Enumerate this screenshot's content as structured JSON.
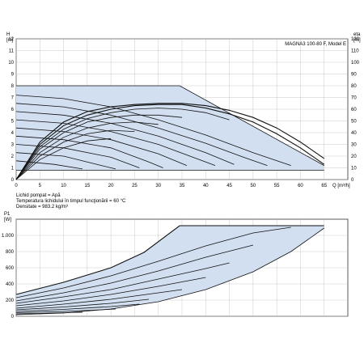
{
  "chart_data": [
    {
      "type": "line",
      "title": "MAGNA3 100-80 F, Model E",
      "y_axis_label": "H",
      "y_axis_unit": "[m]",
      "y2_axis_label": "eta",
      "y2_axis_unit": "[%]",
      "x_axis_label": "Q [m³/h]",
      "xlim": [
        0,
        70
      ],
      "ylim": [
        0,
        12
      ],
      "y2lim": [
        0,
        120
      ],
      "x_ticks": [
        0,
        5,
        10,
        15,
        20,
        25,
        30,
        35,
        40,
        45,
        50,
        55,
        60,
        65
      ],
      "y_ticks": [
        0,
        1,
        2,
        3,
        4,
        5,
        6,
        7,
        8,
        9,
        10,
        11,
        12
      ],
      "y2_ticks": [
        0,
        10,
        20,
        30,
        40,
        50,
        60,
        70,
        80,
        90,
        100,
        110,
        120
      ],
      "grid": true,
      "operating_area": {
        "upper_boundary": [
          [
            0,
            8
          ],
          [
            34.5,
            8
          ],
          [
            65,
            1.2
          ]
        ],
        "lower_boundary": [
          [
            0,
            0.8
          ],
          [
            65,
            0.8
          ]
        ]
      },
      "series": [
        {
          "values": [
            [
              0,
              8
            ],
            [
              34.5,
              8
            ],
            [
              65,
              1.2
            ]
          ]
        },
        {
          "values": [
            [
              0,
              7.2
            ],
            [
              10,
              6.9
            ],
            [
              20,
              6.2
            ],
            [
              30,
              5.1
            ],
            [
              40,
              3.8
            ],
            [
              50,
              2.3
            ],
            [
              58,
              1.2
            ]
          ]
        },
        {
          "values": [
            [
              0,
              6.5
            ],
            [
              10,
              6.2
            ],
            [
              20,
              5.5
            ],
            [
              30,
              4.4
            ],
            [
              40,
              3.1
            ],
            [
              48,
              1.9
            ],
            [
              53,
              1.2
            ]
          ]
        },
        {
          "values": [
            [
              0,
              5.8
            ],
            [
              10,
              5.5
            ],
            [
              20,
              4.8
            ],
            [
              30,
              3.7
            ],
            [
              40,
              2.3
            ],
            [
              46,
              1.3
            ]
          ]
        },
        {
          "values": [
            [
              0,
              5.1
            ],
            [
              10,
              4.8
            ],
            [
              20,
              4.1
            ],
            [
              30,
              3.0
            ],
            [
              40,
              1.5
            ],
            [
              42,
              1.2
            ]
          ]
        },
        {
          "values": [
            [
              0,
              4.4
            ],
            [
              10,
              4.1
            ],
            [
              20,
              3.4
            ],
            [
              30,
              2.2
            ],
            [
              36,
              1.2
            ]
          ]
        },
        {
          "values": [
            [
              0,
              3.7
            ],
            [
              10,
              3.4
            ],
            [
              20,
              2.7
            ],
            [
              28,
              1.5
            ],
            [
              31,
              1.0
            ]
          ]
        },
        {
          "values": [
            [
              0,
              3.0
            ],
            [
              10,
              2.7
            ],
            [
              20,
              1.9
            ],
            [
              26,
              1.0
            ]
          ]
        },
        {
          "values": [
            [
              0,
              2.3
            ],
            [
              10,
              2.0
            ],
            [
              18,
              1.2
            ],
            [
              21,
              0.9
            ]
          ]
        },
        {
          "values": [
            [
              0,
              1.6
            ],
            [
              8,
              1.3
            ],
            [
              14,
              0.9
            ]
          ]
        },
        {
          "values": [
            [
              0,
              0.8
            ],
            [
              65,
              0.8
            ]
          ]
        },
        {
          "values": [
            [
              0,
              0
            ],
            [
              5,
              3.2
            ],
            [
              10,
              4.9
            ],
            [
              15,
              5.8
            ],
            [
              20,
              6.2
            ],
            [
              25,
              6.4
            ],
            [
              30,
              6.5
            ],
            [
              35,
              6.5
            ],
            [
              40,
              6.3
            ],
            [
              45,
              5.9
            ],
            [
              50,
              5.3
            ],
            [
              55,
              4.4
            ],
            [
              60,
              3.2
            ],
            [
              65,
              1.8
            ]
          ]
        },
        {
          "values": [
            [
              0,
              0
            ],
            [
              5,
              3.0
            ],
            [
              10,
              4.6
            ],
            [
              15,
              5.5
            ],
            [
              20,
              6.0
            ],
            [
              25,
              6.3
            ],
            [
              30,
              6.4
            ],
            [
              35,
              6.4
            ],
            [
              40,
              6.1
            ],
            [
              45,
              5.6
            ],
            [
              50,
              4.9
            ],
            [
              55,
              3.9
            ],
            [
              60,
              2.7
            ],
            [
              65,
              1.3
            ]
          ]
        },
        {
          "values": [
            [
              0,
              0
            ],
            [
              5,
              2.8
            ],
            [
              10,
              4.3
            ],
            [
              15,
              5.2
            ],
            [
              20,
              5.7
            ],
            [
              25,
              6.0
            ],
            [
              30,
              6.1
            ],
            [
              35,
              6.0
            ],
            [
              40,
              5.7
            ],
            [
              45,
              5.1
            ]
          ]
        },
        {
          "values": [
            [
              0,
              0
            ],
            [
              5,
              2.6
            ],
            [
              10,
              4.0
            ],
            [
              15,
              4.9
            ],
            [
              20,
              5.3
            ],
            [
              25,
              5.5
            ],
            [
              30,
              5.5
            ],
            [
              35,
              5.3
            ]
          ]
        },
        {
          "values": [
            [
              0,
              0
            ],
            [
              5,
              2.3
            ],
            [
              10,
              3.6
            ],
            [
              15,
              4.4
            ],
            [
              20,
              4.8
            ],
            [
              25,
              4.9
            ],
            [
              30,
              4.7
            ]
          ]
        },
        {
          "values": [
            [
              0,
              0
            ],
            [
              5,
              2.0
            ],
            [
              10,
              3.2
            ],
            [
              15,
              3.9
            ],
            [
              20,
              4.2
            ],
            [
              25,
              4.1
            ]
          ]
        },
        {
          "values": [
            [
              0,
              0
            ],
            [
              5,
              1.7
            ],
            [
              10,
              2.7
            ],
            [
              15,
              3.3
            ],
            [
              20,
              3.5
            ]
          ]
        }
      ]
    },
    {
      "type": "line",
      "y_axis_label": "P1",
      "y_axis_unit": "[W]",
      "xlim": [
        0,
        70
      ],
      "ylim": [
        0,
        1200
      ],
      "y_ticks": [
        0,
        200,
        400,
        600,
        800,
        1000
      ],
      "y_tick_labels": [
        "0",
        "200",
        "400",
        "600",
        "800",
        "1.000"
      ],
      "grid": true,
      "operating_area": {
        "upper_boundary": [
          [
            0,
            270
          ],
          [
            10,
            420
          ],
          [
            20,
            600
          ],
          [
            27,
            790
          ],
          [
            34.5,
            1120
          ],
          [
            65,
            1120
          ]
        ],
        "lower_boundary": [
          [
            0,
            20
          ],
          [
            10,
            40
          ],
          [
            20,
            90
          ],
          [
            30,
            180
          ],
          [
            40,
            330
          ],
          [
            50,
            550
          ],
          [
            58,
            800
          ],
          [
            65,
            1090
          ]
        ]
      },
      "series": [
        {
          "values": [
            [
              0,
              270
            ],
            [
              10,
              420
            ],
            [
              20,
              600
            ],
            [
              27,
              790
            ],
            [
              34.5,
              1120
            ],
            [
              65,
              1120
            ]
          ]
        },
        {
          "values": [
            [
              0,
              230
            ],
            [
              10,
              350
            ],
            [
              20,
              500
            ],
            [
              30,
              680
            ],
            [
              40,
              870
            ],
            [
              50,
              1030
            ],
            [
              58,
              1100
            ]
          ]
        },
        {
          "values": [
            [
              0,
              190
            ],
            [
              10,
              290
            ],
            [
              20,
              410
            ],
            [
              30,
              560
            ],
            [
              40,
              730
            ],
            [
              50,
              880
            ]
          ]
        },
        {
          "values": [
            [
              0,
              160
            ],
            [
              10,
              240
            ],
            [
              20,
              330
            ],
            [
              30,
              460
            ],
            [
              40,
              590
            ],
            [
              45,
              660
            ]
          ]
        },
        {
          "values": [
            [
              0,
              130
            ],
            [
              10,
              190
            ],
            [
              20,
              270
            ],
            [
              30,
              370
            ],
            [
              40,
              480
            ]
          ]
        },
        {
          "values": [
            [
              0,
              100
            ],
            [
              10,
              150
            ],
            [
              20,
              210
            ],
            [
              30,
              290
            ],
            [
              35,
              330
            ]
          ]
        },
        {
          "values": [
            [
              0,
              80
            ],
            [
              10,
              115
            ],
            [
              20,
              160
            ],
            [
              28,
              210
            ]
          ]
        },
        {
          "values": [
            [
              0,
              60
            ],
            [
              10,
              85
            ],
            [
              20,
              120
            ],
            [
              26,
              150
            ]
          ]
        },
        {
          "values": [
            [
              0,
              45
            ],
            [
              10,
              60
            ],
            [
              18,
              80
            ],
            [
              21,
              90
            ]
          ]
        },
        {
          "values": [
            [
              0,
              30
            ],
            [
              8,
              40
            ],
            [
              14,
              50
            ]
          ]
        },
        {
          "values": [
            [
              0,
              20
            ],
            [
              10,
              40
            ],
            [
              20,
              90
            ],
            [
              30,
              180
            ],
            [
              40,
              330
            ],
            [
              50,
              550
            ],
            [
              58,
              800
            ],
            [
              65,
              1090
            ]
          ]
        }
      ]
    }
  ],
  "notes": {
    "line1": "Lichid pompat = Apă",
    "line2": "Temperatura lichidului în timpul funcţionării = 60 °C",
    "line3": "Densitate = 983.2 kg/m³"
  }
}
